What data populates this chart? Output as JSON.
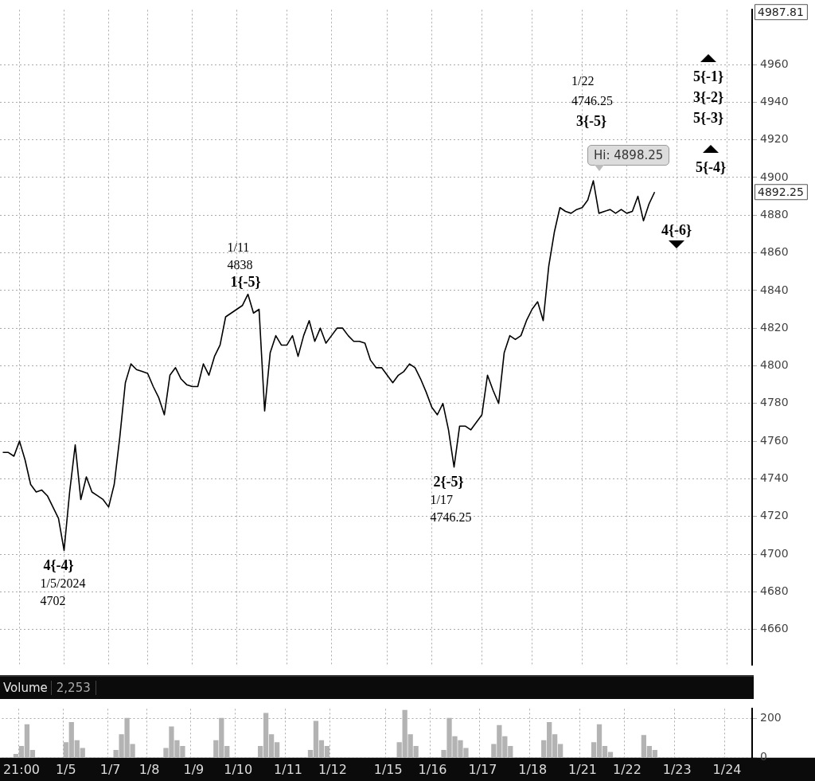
{
  "chart_data": [
    {
      "type": "line",
      "color": "#000000",
      "marker": "none",
      "grid": true,
      "tick_labels": "y",
      "categories": [
        null,
        null,
        null,
        null,
        null,
        null,
        null,
        null,
        null,
        null,
        null,
        null,
        null,
        null,
        null,
        null,
        null,
        null,
        null,
        null,
        null,
        null,
        null,
        null,
        null,
        null,
        null,
        null,
        null,
        null,
        null,
        null,
        null,
        null,
        null,
        null,
        null,
        null,
        null,
        null,
        null,
        null,
        null,
        null,
        null,
        null,
        null,
        null,
        null,
        null,
        null,
        null,
        null,
        null,
        null,
        null,
        null,
        null,
        null,
        null,
        null,
        null,
        null,
        null,
        null,
        null,
        null,
        null,
        null,
        null,
        null,
        null,
        null,
        null,
        null,
        null,
        null,
        null,
        null,
        null,
        null,
        null,
        null,
        null,
        null,
        null,
        null,
        null,
        null,
        null,
        null,
        null,
        null,
        null,
        null,
        null,
        null,
        null,
        null,
        null,
        null,
        null,
        null,
        null,
        null,
        null,
        null,
        null,
        null,
        null,
        null,
        null,
        null,
        null,
        null,
        null,
        null,
        null,
        null,
        null,
        null,
        null,
        null,
        null,
        null,
        null,
        null,
        null,
        null,
        null,
        null,
        null,
        null,
        null,
        null
      ],
      "values": [
        4754,
        4754,
        4752,
        4760,
        4750,
        4737,
        4733,
        4734,
        4731,
        4725,
        4719,
        4702,
        4733,
        4758,
        4729,
        4741,
        4733,
        4731,
        4729,
        4725,
        4737,
        4762,
        4791,
        4801,
        4798,
        4797,
        4796,
        4789,
        4783,
        4774,
        4795,
        4799,
        4793,
        4790,
        4789,
        4789,
        4801,
        4795,
        4805,
        4811,
        4826,
        4828,
        4830,
        4832,
        4838,
        4828,
        4830,
        4776,
        4807,
        4816,
        4811,
        4811,
        4816,
        4805,
        4816,
        4824,
        4813,
        4820,
        4812,
        4816,
        4820,
        4820,
        4816,
        4813,
        4813,
        4812,
        4803,
        4799,
        4799,
        4795,
        4791,
        4795,
        4797,
        4801,
        4799,
        4793,
        4786,
        4778,
        4774,
        4780,
        4766,
        4746.25,
        4768,
        4768,
        4766,
        4770,
        4774,
        4795,
        4787,
        4780,
        4807,
        4816,
        4814,
        4816,
        4824,
        4830,
        4834,
        4824,
        4853,
        4871,
        4884,
        4882,
        4881,
        4883,
        4884,
        4888,
        4898.25,
        4881,
        4882,
        4883,
        4881,
        4883,
        4881,
        4882,
        4890,
        4877,
        4886,
        4892.25,
        null,
        null,
        null,
        null,
        null,
        null,
        null,
        null,
        null,
        null,
        null,
        null,
        null,
        null,
        null,
        null,
        null
      ],
      "ylim": [
        4641,
        4989
      ],
      "yticks": [
        4660,
        4680,
        4700,
        4720,
        4740,
        4760,
        4780,
        4800,
        4820,
        4840,
        4860,
        4880,
        4900,
        4920,
        4940,
        4960,
        {
          "value": 4987.81,
          "label": "4987.81"
        },
        {
          "value": 4892.25,
          "label": "4892.25"
        }
      ],
      "annotations": [
        {
          "text": "4{-4}\n1/5/2024\n4702",
          "y": 4702
        },
        {
          "text": "1/11\n4838\n1{-5}",
          "y": 4838
        },
        {
          "text": "2{-5}\n1/17\n4746.25",
          "y": 4746.25
        },
        "1/22\n4746.25\n3{-5}",
        "Hi: 4898.25",
        "5{-1}\n3{-2}\n5{-3}",
        "5{-4}",
        "4{-6}"
      ]
    },
    {
      "type": "bar",
      "title": "Volume",
      "color": "#b3b3b3",
      "grid": true,
      "categories": [
        null,
        null,
        null,
        "21:00",
        null,
        null,
        null,
        null,
        null,
        null,
        null,
        "1/5",
        null,
        null,
        null,
        null,
        null,
        null,
        null,
        "1/7",
        null,
        null,
        null,
        null,
        null,
        null,
        "1/8",
        null,
        null,
        null,
        null,
        null,
        null,
        null,
        "1/9",
        null,
        null,
        null,
        null,
        null,
        null,
        null,
        "1/10",
        null,
        null,
        null,
        null,
        null,
        null,
        null,
        null,
        "1/11",
        null,
        null,
        null,
        null,
        null,
        null,
        null,
        "1/12",
        null,
        null,
        null,
        null,
        null,
        null,
        null,
        null,
        null,
        "1/15",
        null,
        null,
        null,
        null,
        null,
        null,
        null,
        "1/16",
        null,
        null,
        null,
        null,
        null,
        null,
        null,
        null,
        "1/17",
        null,
        null,
        null,
        null,
        null,
        null,
        null,
        null,
        "1/18",
        null,
        null,
        null,
        null,
        null,
        null,
        null,
        null,
        "1/21",
        null,
        null,
        null,
        null,
        null,
        null,
        null,
        "1/22",
        null,
        null,
        null,
        null,
        null,
        null,
        null,
        null,
        "1/23",
        null,
        null,
        null,
        null,
        null,
        null,
        null,
        null,
        "1/24",
        null,
        null,
        null,
        null
      ],
      "values": [
        3,
        3,
        20,
        60,
        171,
        40,
        3,
        3,
        3,
        3,
        3,
        80,
        182,
        90,
        50,
        3,
        3,
        3,
        3,
        3,
        40,
        120,
        204,
        70,
        3,
        3,
        3,
        3,
        3,
        50,
        160,
        90,
        60,
        3,
        3,
        3,
        3,
        3,
        90,
        204,
        60,
        3,
        3,
        3,
        3,
        3,
        60,
        229,
        120,
        80,
        3,
        3,
        3,
        3,
        3,
        40,
        189,
        90,
        60,
        3,
        3,
        3,
        3,
        3,
        3,
        3,
        3,
        3,
        3,
        3,
        3,
        80,
        244,
        120,
        60,
        3,
        3,
        3,
        3,
        40,
        204,
        110,
        90,
        50,
        3,
        3,
        3,
        3,
        70,
        167,
        110,
        60,
        3,
        3,
        3,
        3,
        3,
        90,
        182,
        120,
        70,
        3,
        3,
        3,
        3,
        3,
        80,
        171,
        60,
        30,
        3,
        3,
        3,
        3,
        3,
        116,
        60,
        40,
        null,
        null,
        null,
        null,
        null,
        null,
        null,
        null,
        null,
        null,
        null,
        null,
        null,
        null,
        null,
        null,
        null
      ],
      "ylim": [
        0,
        250
      ],
      "yticks": [
        0,
        200
      ],
      "annotations": [
        "2,253"
      ]
    }
  ]
}
